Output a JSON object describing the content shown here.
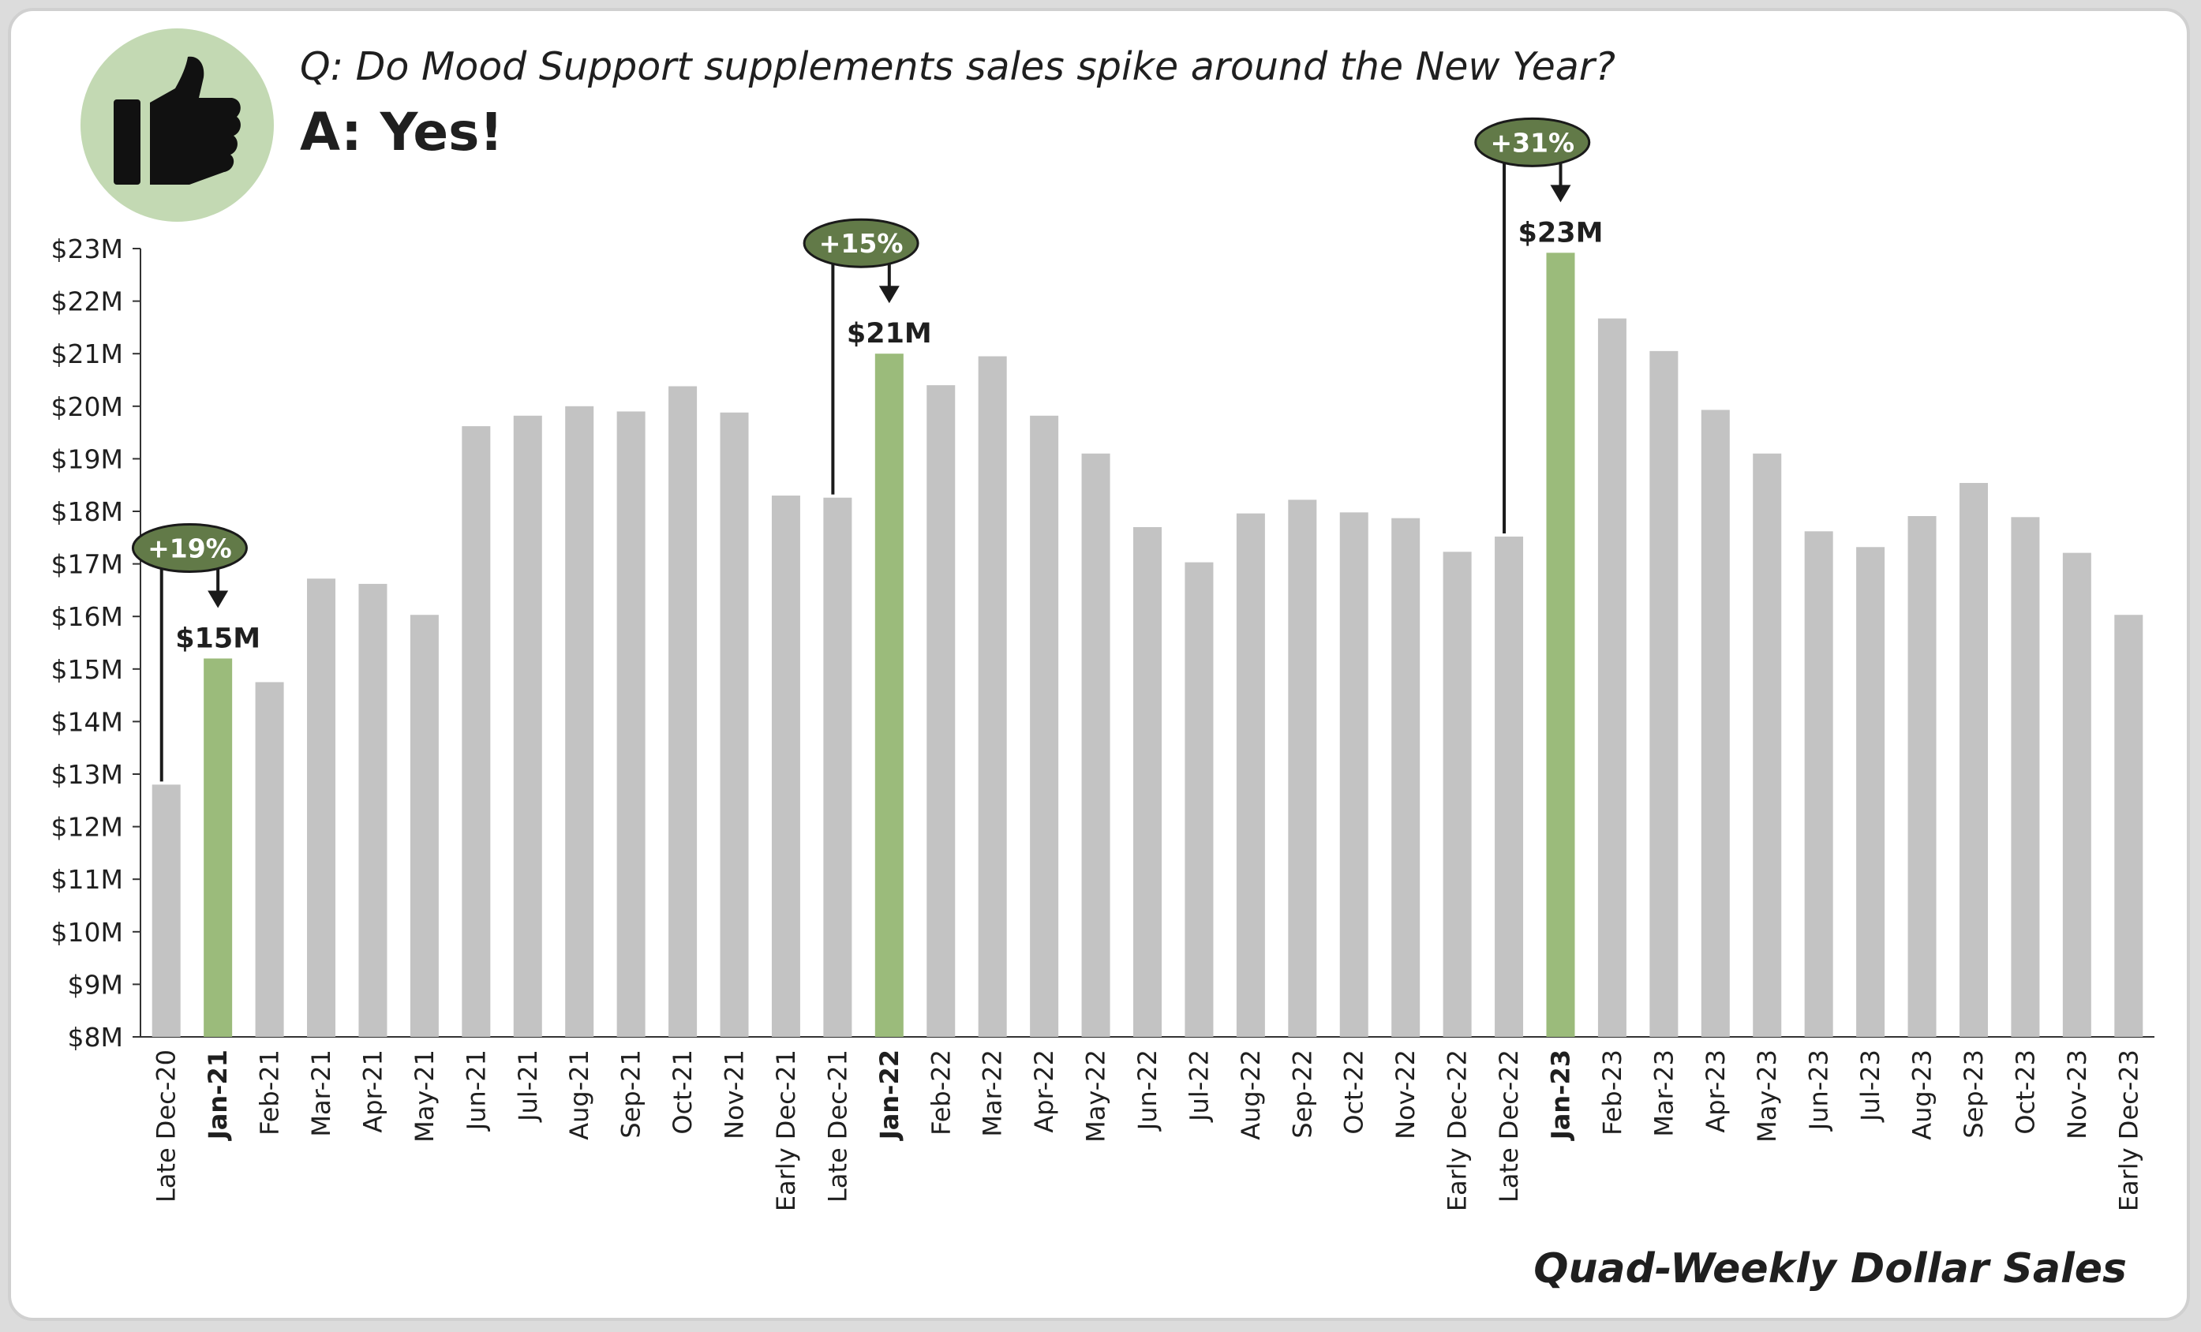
{
  "header": {
    "question": "Q: Do Mood Support supplements sales spike around the New Year?",
    "answer": "A: Yes!",
    "icon": "thumbs-up-icon"
  },
  "footer": {
    "label": "Quad-Weekly Dollar Sales"
  },
  "colors": {
    "bar_default": "#c3c3c3",
    "bar_highlight": "#9bbb7b",
    "callout_fill": "#627a48",
    "badge_fill": "#c3d9b3",
    "text": "#1f1f1f"
  },
  "chart_data": {
    "type": "bar",
    "y_unit_prefix": "$",
    "y_unit_suffix": "M",
    "ylim": [
      8,
      23
    ],
    "yticks": [
      8,
      9,
      10,
      11,
      12,
      13,
      14,
      15,
      16,
      17,
      18,
      19,
      20,
      21,
      22,
      23
    ],
    "categories": [
      "Late Dec-20",
      "Jan-21",
      "Feb-21",
      "Mar-21",
      "Apr-21",
      "May-21",
      "Jun-21",
      "Jul-21",
      "Aug-21",
      "Sep-21",
      "Oct-21",
      "Nov-21",
      "Early Dec-21",
      "Late Dec-21",
      "Jan-22",
      "Feb-22",
      "Mar-22",
      "Apr-22",
      "May-22",
      "Jun-22",
      "Jul-22",
      "Aug-22",
      "Sep-22",
      "Oct-22",
      "Nov-22",
      "Early Dec-22",
      "Late Dec-22",
      "Jan-23",
      "Feb-23",
      "Mar-23",
      "Apr-23",
      "May-23",
      "Jun-23",
      "Jul-23",
      "Aug-23",
      "Sep-23",
      "Oct-23",
      "Nov-23",
      "Early Dec-23"
    ],
    "values": [
      12.8,
      15.2,
      14.75,
      16.72,
      16.62,
      16.03,
      19.62,
      19.82,
      20.0,
      19.9,
      20.38,
      19.88,
      18.3,
      18.26,
      21.0,
      20.4,
      20.95,
      19.82,
      19.1,
      17.7,
      17.03,
      17.96,
      18.22,
      17.98,
      17.87,
      17.23,
      17.52,
      22.92,
      21.67,
      21.05,
      19.93,
      19.1,
      17.62,
      17.32,
      17.91,
      18.54,
      17.89,
      17.21,
      16.03
    ],
    "highlight_indices": [
      1,
      14,
      27
    ],
    "callouts": [
      {
        "from_index": 0,
        "to_index": 1,
        "pct_label": "+19%",
        "value_label": "$15M"
      },
      {
        "from_index": 13,
        "to_index": 14,
        "pct_label": "+15%",
        "value_label": "$21M"
      },
      {
        "from_index": 26,
        "to_index": 27,
        "pct_label": "+31%",
        "value_label": "$23M"
      }
    ]
  }
}
